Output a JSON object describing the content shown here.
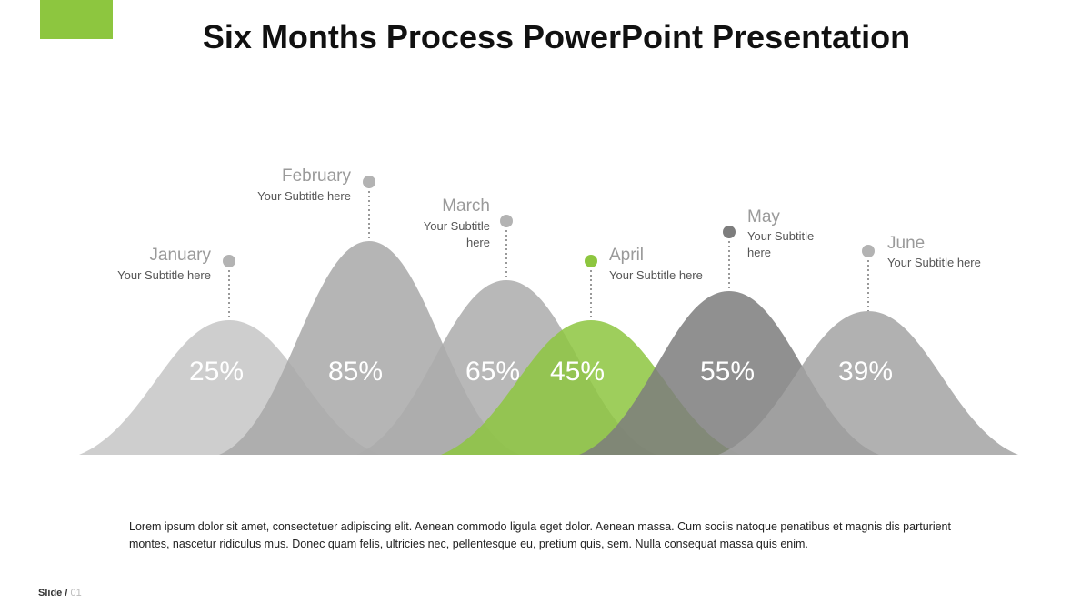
{
  "header": {
    "title": "Six Months Process PowerPoint Presentation"
  },
  "months": [
    {
      "name": "January",
      "subtitle": "Your Subtitle here",
      "percent": "25%"
    },
    {
      "name": "February",
      "subtitle": "Your Subtitle here",
      "percent": "85%"
    },
    {
      "name": "March",
      "subtitle": "Your Subtitle here",
      "percent": "65%"
    },
    {
      "name": "April",
      "subtitle": "Your Subtitle here",
      "percent": "45%"
    },
    {
      "name": "May",
      "subtitle": "Your Subtitle here",
      "percent": "55%"
    },
    {
      "name": "June",
      "subtitle": "Your Subtitle here",
      "percent": "39%"
    }
  ],
  "body": "Lorem ipsum dolor sit amet, consectetuer adipiscing elit. Aenean commodo ligula eget dolor. Aenean massa. Cum sociis natoque penatibus et magnis dis parturient montes, nascetur ridiculus mus. Donec quam felis, ultricies nec, pellentesque eu, pretium quis, sem. Nulla consequat massa quis enim.",
  "footer": {
    "label": "Slide /",
    "number": "01"
  }
}
